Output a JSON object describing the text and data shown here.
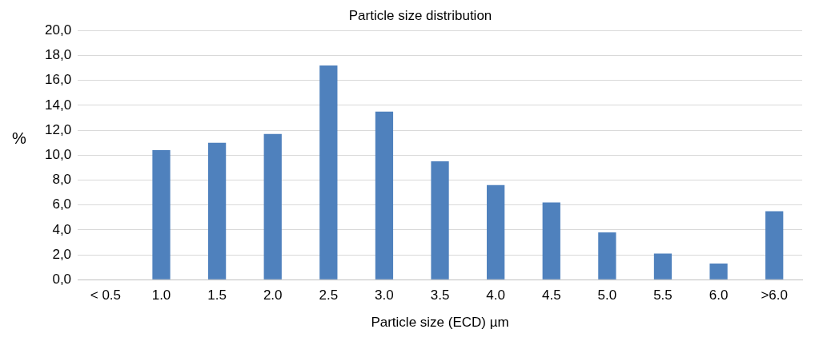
{
  "chart_data": {
    "type": "bar",
    "title": "Particle size distribution",
    "xlabel": "Particle size (ECD) µm",
    "ylabel": "%",
    "categories": [
      "< 0.5",
      "1.0",
      "1.5",
      "2.0",
      "2.5",
      "3.0",
      "3.5",
      "4.0",
      "4.5",
      "5.0",
      "5.5",
      "6.0",
      ">6.0"
    ],
    "values": [
      0,
      10.4,
      11.0,
      11.7,
      17.2,
      13.5,
      9.5,
      7.6,
      6.2,
      3.8,
      2.1,
      1.3,
      5.5
    ],
    "color": "#4f81bd",
    "ylim": [
      0,
      20
    ],
    "yticks": [
      {
        "value": 0,
        "label": "0,0"
      },
      {
        "value": 2,
        "label": "2,0"
      },
      {
        "value": 4,
        "label": "4,0"
      },
      {
        "value": 6,
        "label": "6,0"
      },
      {
        "value": 8,
        "label": "8,0"
      },
      {
        "value": 10,
        "label": "10,0"
      },
      {
        "value": 12,
        "label": "12,0"
      },
      {
        "value": 14,
        "label": "14,0"
      },
      {
        "value": 16,
        "label": "16,0"
      },
      {
        "value": 18,
        "label": "18,0"
      },
      {
        "value": 20,
        "label": "20,0"
      }
    ],
    "grid": "y",
    "legend": false
  }
}
